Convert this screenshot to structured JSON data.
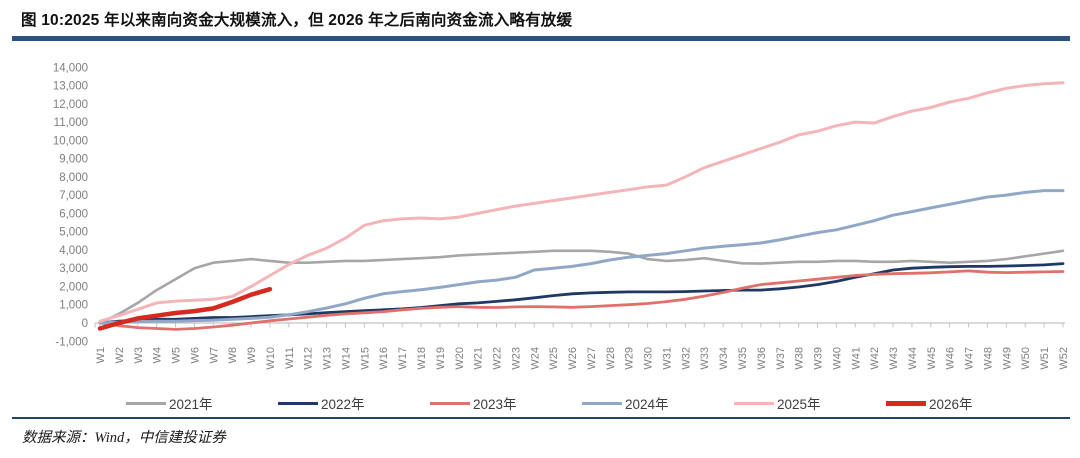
{
  "header": {
    "title": "图 10:2025 年以来南向资金大规模流入，但 2026 年之后南向资金流入略有放缓"
  },
  "footer": {
    "source": "数据来源：Wind，中信建投证券"
  },
  "colors": {
    "accent_bar": "#2f5180",
    "axis_text": "#7f7f7f",
    "axis_line": "#c3c3c3",
    "legend_text": "#3d3d3d"
  },
  "chart_data": {
    "type": "line",
    "title": "",
    "xlabel": "",
    "ylabel": "",
    "grid": false,
    "legend_position": "bottom",
    "ylim": [
      -1000,
      14000
    ],
    "y_tick_step": 1000,
    "categories": [
      "W1",
      "W2",
      "W3",
      "W4",
      "W5",
      "W6",
      "W7",
      "W8",
      "W9",
      "W10",
      "W11",
      "W12",
      "W13",
      "W14",
      "W15",
      "W16",
      "W17",
      "W18",
      "W19",
      "W20",
      "W21",
      "W22",
      "W23",
      "W24",
      "W25",
      "W26",
      "W27",
      "W28",
      "W29",
      "W30",
      "W31",
      "W32",
      "W33",
      "W34",
      "W35",
      "W36",
      "W37",
      "W38",
      "W39",
      "W40",
      "W41",
      "W42",
      "W43",
      "W44",
      "W45",
      "W46",
      "W47",
      "W48",
      "W49",
      "W50",
      "W51",
      "W52"
    ],
    "series": [
      {
        "name": "2021年",
        "color": "#a6a6a6",
        "width": 2.6,
        "values": [
          0,
          500,
          1100,
          1800,
          2400,
          3000,
          3300,
          3400,
          3500,
          3400,
          3300,
          3300,
          3350,
          3400,
          3400,
          3450,
          3500,
          3550,
          3600,
          3700,
          3750,
          3800,
          3850,
          3900,
          3950,
          3950,
          3950,
          3900,
          3800,
          3500,
          3400,
          3450,
          3550,
          3400,
          3270,
          3250,
          3300,
          3350,
          3350,
          3400,
          3400,
          3350,
          3350,
          3400,
          3350,
          3300,
          3350,
          3400,
          3500,
          3650,
          3800,
          3950
        ]
      },
      {
        "name": "2022年",
        "color": "#1f3864",
        "width": 2.8,
        "values": [
          0,
          100,
          150,
          200,
          200,
          250,
          300,
          300,
          350,
          400,
          450,
          500,
          570,
          620,
          680,
          720,
          770,
          850,
          950,
          1050,
          1100,
          1180,
          1270,
          1380,
          1500,
          1600,
          1650,
          1680,
          1700,
          1700,
          1700,
          1720,
          1750,
          1780,
          1800,
          1800,
          1870,
          1970,
          2100,
          2280,
          2500,
          2700,
          2900,
          3000,
          3050,
          3080,
          3100,
          3100,
          3120,
          3150,
          3180,
          3250
        ]
      },
      {
        "name": "2023年",
        "color": "#e0706b",
        "width": 2.8,
        "values": [
          0,
          -150,
          -250,
          -300,
          -350,
          -300,
          -220,
          -120,
          0,
          120,
          220,
          320,
          420,
          500,
          560,
          620,
          720,
          800,
          860,
          900,
          860,
          850,
          880,
          900,
          880,
          860,
          900,
          950,
          1000,
          1070,
          1170,
          1300,
          1470,
          1670,
          1900,
          2100,
          2200,
          2300,
          2400,
          2500,
          2600,
          2660,
          2700,
          2720,
          2750,
          2800,
          2850,
          2780,
          2760,
          2780,
          2800,
          2820
        ]
      },
      {
        "name": "2024年",
        "color": "#90a8c6",
        "width": 3,
        "values": [
          0,
          50,
          80,
          100,
          100,
          130,
          150,
          200,
          250,
          320,
          450,
          620,
          820,
          1050,
          1350,
          1600,
          1720,
          1820,
          1950,
          2100,
          2250,
          2350,
          2500,
          2900,
          3000,
          3100,
          3250,
          3450,
          3600,
          3700,
          3800,
          3950,
          4100,
          4200,
          4280,
          4380,
          4550,
          4750,
          4950,
          5100,
          5350,
          5600,
          5900,
          6100,
          6300,
          6500,
          6700,
          6900,
          7000,
          7150,
          7250,
          7250
        ]
      },
      {
        "name": "2025年",
        "color": "#f3b5b8",
        "width": 3,
        "values": [
          100,
          400,
          750,
          1100,
          1200,
          1250,
          1300,
          1450,
          2000,
          2600,
          3200,
          3700,
          4100,
          4650,
          5350,
          5600,
          5700,
          5750,
          5700,
          5800,
          6000,
          6200,
          6400,
          6550,
          6700,
          6850,
          7000,
          7150,
          7300,
          7450,
          7550,
          8000,
          8500,
          8850,
          9200,
          9550,
          9900,
          10300,
          10500,
          10800,
          11000,
          10950,
          11300,
          11600,
          11800,
          12100,
          12300,
          12600,
          12850,
          13000,
          13100,
          13150
        ]
      },
      {
        "name": "2026年",
        "color": "#d42a20",
        "width": 4.5,
        "values": [
          -300,
          0,
          250,
          400,
          550,
          650,
          800,
          1150,
          1550,
          1850,
          null,
          null,
          null,
          null,
          null,
          null,
          null,
          null,
          null,
          null,
          null,
          null,
          null,
          null,
          null,
          null,
          null,
          null,
          null,
          null,
          null,
          null,
          null,
          null,
          null,
          null,
          null,
          null,
          null,
          null,
          null,
          null,
          null,
          null,
          null,
          null,
          null,
          null,
          null,
          null,
          null,
          null
        ]
      }
    ]
  }
}
